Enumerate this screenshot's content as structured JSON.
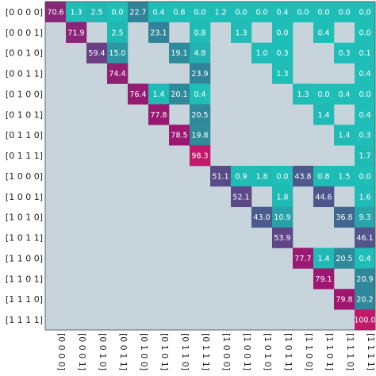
{
  "chart_data": {
    "type": "heatmap",
    "title": "",
    "xlabel": "",
    "ylabel": "",
    "row_labels": [
      "[0 0 0 0]",
      "[0 0 0 1]",
      "[0 0 1 0]",
      "[0 0 1 1]",
      "[0 1 0 0]",
      "[0 1 0 1]",
      "[0 1 1 0]",
      "[0 1 1 1]",
      "[1 0 0 0]",
      "[1 0 0 1]",
      "[1 0 1 0]",
      "[1 0 1 1]",
      "[1 1 0 0]",
      "[1 1 0 1]",
      "[1 1 1 0]",
      "[1 1 1 1]"
    ],
    "col_labels": [
      "[0 0 0 0]",
      "[0 0 0 1]",
      "[0 0 1 0]",
      "[0 0 1 1]",
      "[0 1 0 0]",
      "[0 1 0 1]",
      "[0 1 1 0]",
      "[0 1 1 1]",
      "[1 0 0 0]",
      "[1 0 0 1]",
      "[1 0 1 0]",
      "[1 0 1 1]",
      "[1 1 0 0]",
      "[1 1 0 1]",
      "[1 1 1 0]",
      "[1 1 1 1]"
    ],
    "empty_color": "#c8d4dc",
    "colormap": [
      "#1fbfb8",
      "#2e8a9a",
      "#455f8e",
      "#6b3d84",
      "#a0146e",
      "#c21a6a"
    ],
    "cells": [
      [
        0,
        0,
        "70.6"
      ],
      [
        0,
        1,
        "1.3"
      ],
      [
        0,
        2,
        "2.5"
      ],
      [
        0,
        3,
        "0.0"
      ],
      [
        0,
        4,
        "22.7"
      ],
      [
        0,
        5,
        "0.4"
      ],
      [
        0,
        6,
        "0.8"
      ],
      [
        0,
        7,
        "0.0"
      ],
      [
        0,
        8,
        "1.2"
      ],
      [
        0,
        9,
        "0.0"
      ],
      [
        0,
        10,
        "0.0"
      ],
      [
        0,
        11,
        "0.4"
      ],
      [
        0,
        12,
        "0.0"
      ],
      [
        0,
        13,
        "0.0"
      ],
      [
        0,
        14,
        "0.0"
      ],
      [
        0,
        15,
        "0.0"
      ],
      [
        1,
        1,
        "71.9"
      ],
      [
        1,
        3,
        "2.5"
      ],
      [
        1,
        5,
        "23.1"
      ],
      [
        1,
        7,
        "0.8"
      ],
      [
        1,
        9,
        "1.3"
      ],
      [
        1,
        11,
        "0.0"
      ],
      [
        1,
        13,
        "0.4"
      ],
      [
        1,
        15,
        "0.0"
      ],
      [
        2,
        2,
        "59.4"
      ],
      [
        2,
        3,
        "15.0"
      ],
      [
        2,
        6,
        "19.1"
      ],
      [
        2,
        7,
        "4.8"
      ],
      [
        2,
        10,
        "1.0"
      ],
      [
        2,
        11,
        "0.3"
      ],
      [
        2,
        14,
        "0.3"
      ],
      [
        2,
        15,
        "0.1"
      ],
      [
        3,
        3,
        "74.4"
      ],
      [
        3,
        7,
        "23.9"
      ],
      [
        3,
        11,
        "1.3"
      ],
      [
        3,
        15,
        "0.4"
      ],
      [
        4,
        4,
        "76.4"
      ],
      [
        4,
        5,
        "1.4"
      ],
      [
        4,
        6,
        "20.1"
      ],
      [
        4,
        7,
        "0.4"
      ],
      [
        4,
        12,
        "1.3"
      ],
      [
        4,
        13,
        "0.0"
      ],
      [
        4,
        14,
        "0.4"
      ],
      [
        4,
        15,
        "0.0"
      ],
      [
        5,
        5,
        "77.8"
      ],
      [
        5,
        7,
        "20.5"
      ],
      [
        5,
        13,
        "1.4"
      ],
      [
        5,
        15,
        "0.4"
      ],
      [
        6,
        6,
        "78.5"
      ],
      [
        6,
        7,
        "19.8"
      ],
      [
        6,
        14,
        "1.4"
      ],
      [
        6,
        15,
        "0.3"
      ],
      [
        7,
        7,
        "98.3"
      ],
      [
        7,
        15,
        "1.7"
      ],
      [
        8,
        8,
        "51.1"
      ],
      [
        8,
        9,
        "0.9"
      ],
      [
        8,
        10,
        "1.8"
      ],
      [
        8,
        11,
        "0.0"
      ],
      [
        8,
        12,
        "43.8"
      ],
      [
        8,
        13,
        "0.8"
      ],
      [
        8,
        14,
        "1.5"
      ],
      [
        8,
        15,
        "0.0"
      ],
      [
        9,
        9,
        "52.1"
      ],
      [
        9,
        11,
        "1.8"
      ],
      [
        9,
        13,
        "44.6"
      ],
      [
        9,
        15,
        "1.6"
      ],
      [
        10,
        10,
        "43.0"
      ],
      [
        10,
        11,
        "10.9"
      ],
      [
        10,
        14,
        "36.8"
      ],
      [
        10,
        15,
        "9.3"
      ],
      [
        11,
        11,
        "53.9"
      ],
      [
        11,
        15,
        "46.1"
      ],
      [
        12,
        12,
        "77.7"
      ],
      [
        12,
        13,
        "1.4"
      ],
      [
        12,
        14,
        "20.5"
      ],
      [
        12,
        15,
        "0.4"
      ],
      [
        13,
        13,
        "79.1"
      ],
      [
        13,
        15,
        "20.9"
      ],
      [
        14,
        14,
        "79.8"
      ],
      [
        14,
        15,
        "20.2"
      ],
      [
        15,
        15,
        "100.0"
      ]
    ]
  }
}
